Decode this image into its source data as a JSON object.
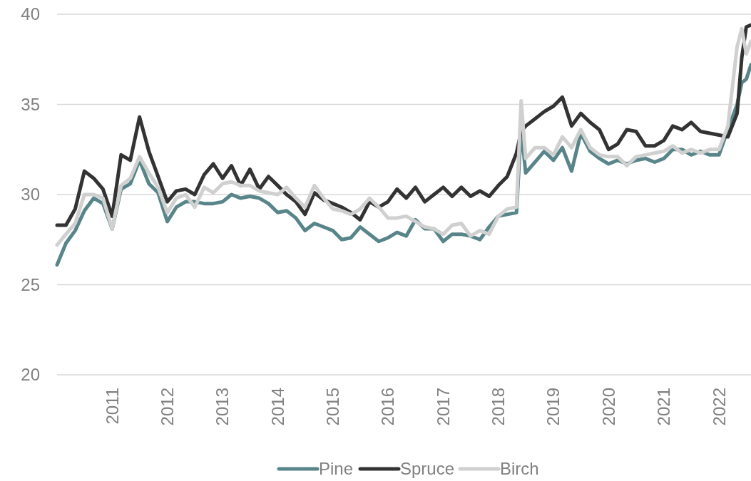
{
  "chart_data": {
    "type": "line",
    "x": [
      "2010-01",
      "2010-03",
      "2010-05",
      "2010-07",
      "2010-09",
      "2010-11",
      "2011-01",
      "2011-03",
      "2011-05",
      "2011-07",
      "2011-09",
      "2011-11",
      "2012-01",
      "2012-03",
      "2012-05",
      "2012-07",
      "2012-09",
      "2012-11",
      "2013-01",
      "2013-03",
      "2013-05",
      "2013-07",
      "2013-09",
      "2013-11",
      "2014-01",
      "2014-03",
      "2014-05",
      "2014-07",
      "2014-09",
      "2014-11",
      "2015-01",
      "2015-03",
      "2015-05",
      "2015-07",
      "2015-09",
      "2015-11",
      "2016-01",
      "2016-03",
      "2016-05",
      "2016-07",
      "2016-09",
      "2016-11",
      "2017-01",
      "2017-03",
      "2017-05",
      "2017-07",
      "2017-09",
      "2017-11",
      "2018-01",
      "2018-03",
      "2018-05",
      "2018-06",
      "2018-07",
      "2018-09",
      "2018-11",
      "2019-01",
      "2019-03",
      "2019-05",
      "2019-07",
      "2019-09",
      "2019-11",
      "2020-01",
      "2020-03",
      "2020-05",
      "2020-07",
      "2020-09",
      "2020-11",
      "2021-01",
      "2021-03",
      "2021-05",
      "2021-07",
      "2021-09",
      "2021-11",
      "2022-01",
      "2022-03",
      "2022-05",
      "2022-06",
      "2022-07",
      "2022-08"
    ],
    "series": [
      {
        "name": "Pine",
        "color": "#588589",
        "values": [
          26.1,
          27.3,
          28.0,
          29.1,
          29.8,
          29.5,
          28.1,
          30.3,
          30.6,
          31.9,
          30.6,
          30.1,
          28.5,
          29.3,
          29.6,
          29.6,
          29.5,
          29.5,
          29.6,
          30.0,
          29.8,
          29.9,
          29.8,
          29.5,
          29.0,
          29.1,
          28.7,
          28.0,
          28.4,
          28.2,
          28.0,
          27.5,
          27.6,
          28.2,
          27.8,
          27.4,
          27.6,
          27.9,
          27.7,
          28.6,
          28.1,
          28.1,
          27.4,
          27.8,
          27.8,
          27.7,
          27.5,
          28.2,
          28.8,
          28.9,
          29.0,
          33.7,
          31.2,
          31.8,
          32.4,
          31.9,
          32.6,
          31.3,
          33.4,
          32.4,
          32.0,
          31.7,
          31.9,
          31.7,
          31.9,
          32.0,
          31.8,
          32.0,
          32.5,
          32.5,
          32.2,
          32.4,
          32.2,
          32.2,
          33.6,
          35.0,
          36.2,
          36.4,
          37.2
        ]
      },
      {
        "name": "Spruce",
        "color": "#333333",
        "values": [
          28.3,
          28.3,
          29.2,
          31.3,
          30.9,
          30.3,
          28.8,
          32.2,
          31.9,
          34.3,
          32.4,
          31.0,
          29.6,
          30.2,
          30.3,
          30.0,
          31.1,
          31.7,
          30.9,
          31.6,
          30.5,
          31.4,
          30.3,
          31.0,
          30.5,
          30.0,
          29.6,
          28.9,
          30.1,
          29.7,
          29.5,
          29.3,
          29.0,
          28.6,
          29.6,
          29.3,
          29.6,
          30.3,
          29.8,
          30.4,
          29.6,
          30.0,
          30.4,
          29.9,
          30.4,
          29.9,
          30.2,
          29.9,
          30.5,
          31.0,
          32.3,
          33.5,
          33.8,
          34.2,
          34.6,
          34.9,
          35.4,
          33.8,
          34.5,
          34.0,
          33.6,
          32.5,
          32.8,
          33.6,
          33.5,
          32.7,
          32.7,
          33.0,
          33.8,
          33.6,
          34.0,
          33.5,
          33.4,
          33.3,
          33.2,
          34.5,
          37.6,
          39.3,
          39.4
        ]
      },
      {
        "name": "Birch",
        "color": "#d0d0d0",
        "values": [
          27.2,
          27.8,
          28.4,
          30.0,
          30.0,
          29.8,
          28.1,
          30.5,
          30.9,
          32.1,
          31.2,
          30.4,
          29.0,
          29.8,
          30.0,
          29.3,
          30.4,
          30.1,
          30.6,
          30.7,
          30.5,
          30.5,
          30.2,
          30.1,
          30.0,
          30.4,
          29.8,
          29.3,
          30.5,
          29.8,
          29.2,
          29.1,
          28.9,
          29.2,
          29.8,
          29.3,
          28.7,
          28.7,
          28.8,
          28.5,
          28.2,
          28.1,
          27.8,
          28.3,
          28.4,
          27.7,
          28.0,
          27.8,
          28.8,
          29.2,
          29.3,
          35.2,
          32.0,
          32.6,
          32.6,
          32.2,
          33.2,
          32.6,
          33.6,
          32.6,
          32.2,
          32.1,
          32.1,
          31.6,
          32.1,
          32.2,
          32.3,
          32.4,
          32.7,
          32.3,
          32.5,
          32.3,
          32.5,
          32.5,
          33.8,
          38.2,
          39.2,
          37.8,
          38.5
        ]
      }
    ],
    "xlim": [
      "2010-01",
      "2022-08"
    ],
    "xticks": [
      {
        "value": "2011-01",
        "label": "2011"
      },
      {
        "value": "2012-01",
        "label": "2012"
      },
      {
        "value": "2013-01",
        "label": "2013"
      },
      {
        "value": "2014-01",
        "label": "2014"
      },
      {
        "value": "2015-01",
        "label": "2015"
      },
      {
        "value": "2016-01",
        "label": "2016"
      },
      {
        "value": "2017-01",
        "label": "2017"
      },
      {
        "value": "2018-01",
        "label": "2018"
      },
      {
        "value": "2019-01",
        "label": "2019"
      },
      {
        "value": "2020-01",
        "label": "2020"
      },
      {
        "value": "2021-01",
        "label": "2021"
      },
      {
        "value": "2022-01",
        "label": "2022"
      }
    ],
    "ylim": [
      20,
      40
    ],
    "yticks": [
      20,
      25,
      30,
      35,
      40
    ],
    "grid": "y",
    "legend": "bottom",
    "marker": "none",
    "line_style": "solid"
  }
}
